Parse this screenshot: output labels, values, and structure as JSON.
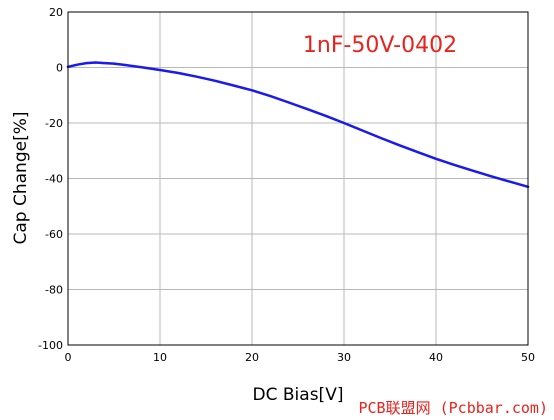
{
  "chart_data": {
    "type": "line",
    "xlabel": "DC Bias[V]",
    "ylabel": "Cap Change[%]",
    "xlim": [
      0,
      50
    ],
    "ylim": [
      -100,
      20
    ],
    "xticks": [
      0,
      10,
      20,
      30,
      40,
      50
    ],
    "yticks": [
      20,
      0,
      -20,
      -40,
      -60,
      -80,
      -100
    ],
    "grid": true,
    "annotation": "1nF-50V-0402",
    "annotation_color": "#e8231e",
    "series": [
      {
        "color": "#1a1aee",
        "x": [
          0,
          1,
          2,
          3,
          4,
          5,
          6,
          8,
          10,
          12,
          14,
          16,
          18,
          20,
          22,
          24,
          26,
          28,
          30,
          32,
          34,
          36,
          38,
          40,
          42,
          44,
          46,
          48,
          50
        ],
        "y": [
          0.2,
          1.0,
          1.6,
          1.8,
          1.6,
          1.4,
          1.0,
          0.1,
          -0.9,
          -2.0,
          -3.3,
          -4.8,
          -6.5,
          -8.2,
          -10.3,
          -12.6,
          -15.0,
          -17.4,
          -20.0,
          -22.7,
          -25.4,
          -28.0,
          -30.5,
          -32.9,
          -35.1,
          -37.2,
          -39.2,
          -41.1,
          -43.0
        ]
      }
    ]
  },
  "watermark": "PCB联盟网 (Pcbbar.com)",
  "watermark_color": "#e8231e"
}
